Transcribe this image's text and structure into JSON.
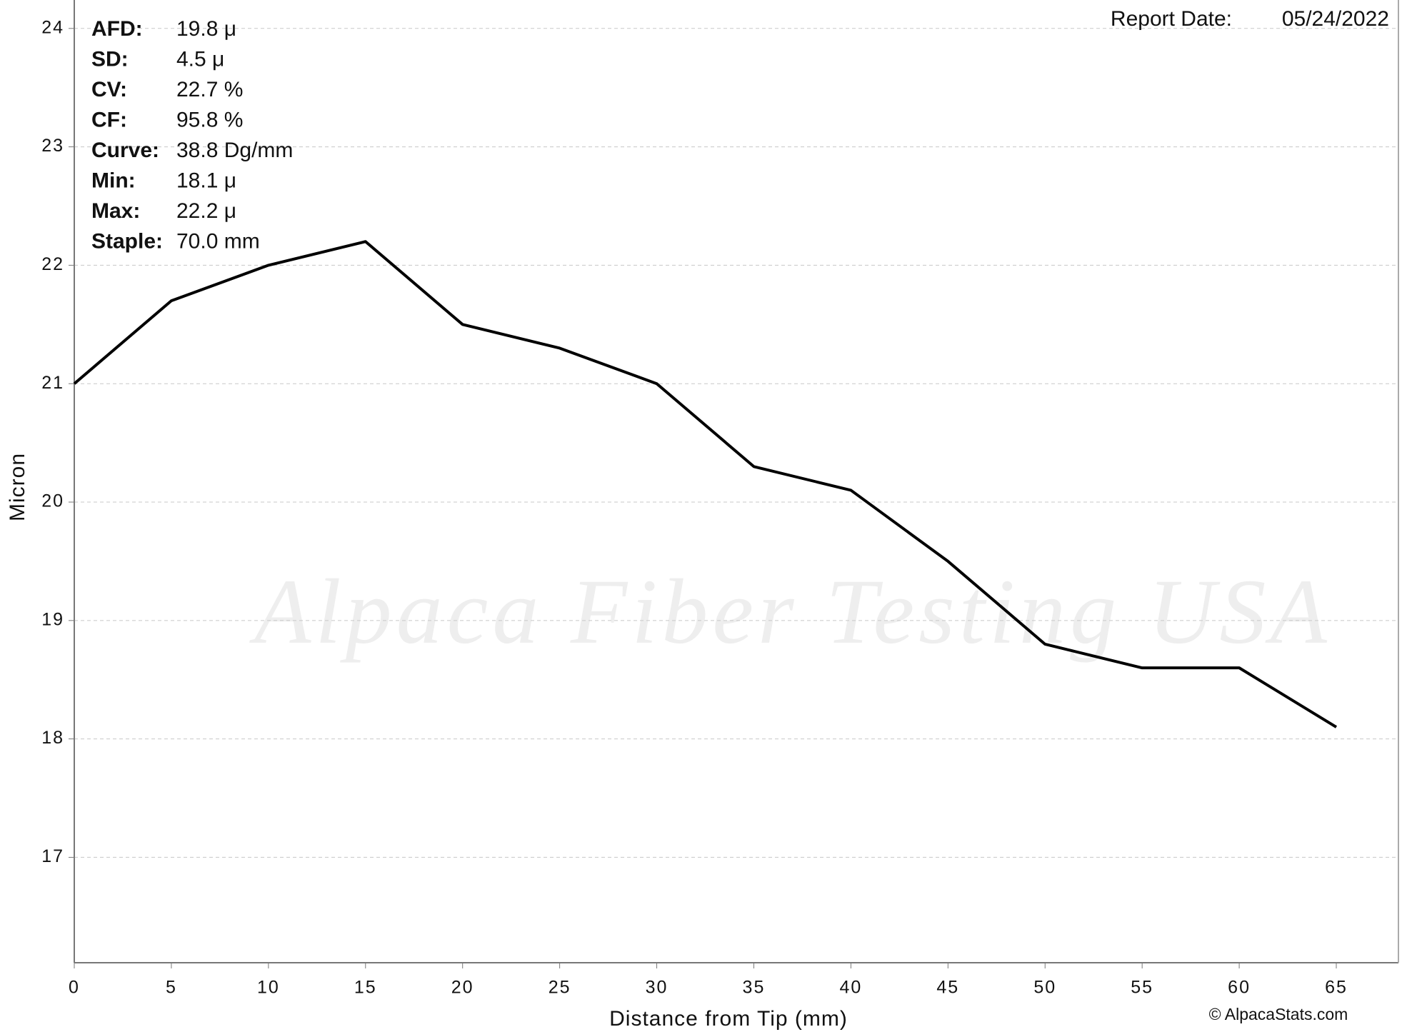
{
  "chart_data": {
    "type": "line",
    "x_label": "Distance from Tip (mm)",
    "y_label": "Micron",
    "x": [
      0,
      5,
      10,
      15,
      20,
      25,
      30,
      35,
      40,
      45,
      50,
      55,
      60,
      65
    ],
    "series": [
      {
        "name": "Micron",
        "color": "#000000",
        "values": [
          21.0,
          21.7,
          22.0,
          22.2,
          21.5,
          21.3,
          21.0,
          20.3,
          20.1,
          19.5,
          18.8,
          18.6,
          18.6,
          18.1
        ]
      }
    ],
    "xlim": [
      0,
      68.2
    ],
    "xticks": [
      0,
      5,
      10,
      15,
      20,
      25,
      30,
      35,
      40,
      45,
      50,
      55,
      60,
      65
    ],
    "ylim": [
      16.11,
      24.24
    ],
    "yticks": [
      17,
      18,
      19,
      20,
      21,
      22,
      23,
      24
    ],
    "grid": true,
    "stats": [
      {
        "label": "AFD:",
        "value": "19.8 μ"
      },
      {
        "label": "SD:",
        "value": "4.5 μ"
      },
      {
        "label": "CV:",
        "value": "22.7 %"
      },
      {
        "label": "CF:",
        "value": "95.8 %"
      },
      {
        "label": "Curve:",
        "value": "38.8 Dg/mm"
      },
      {
        "label": "Min:",
        "value": "18.1 μ"
      },
      {
        "label": "Max:",
        "value": "22.2 μ"
      },
      {
        "label": "Staple:",
        "value": "70.0 mm"
      }
    ],
    "report_date_label": "Report Date:",
    "report_date": "05/24/2022",
    "watermark": "Alpaca Fiber Testing USA",
    "credit": "© AlpacaStats.com"
  }
}
